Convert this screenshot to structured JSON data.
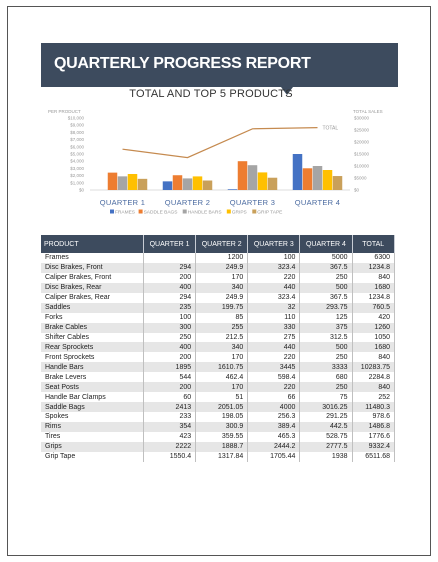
{
  "report": {
    "title": "QUARTERLY PROGRESS REPORT",
    "chart_heading": "TOTAL AND TOP 5 PRODUCTS"
  },
  "chart_data": {
    "type": "bar",
    "title": "TOTAL AND TOP 5 PRODUCTS",
    "categories": [
      "QUARTER 1",
      "QUARTER 2",
      "QUARTER 3",
      "QUARTER 4"
    ],
    "ylabel": "PER PRODUCT",
    "y2label": "TOTAL SALES",
    "ylim": [
      0,
      10000
    ],
    "y2lim": [
      0,
      30000
    ],
    "yticks": [
      "$10,000",
      "$9,000",
      "$8,000",
      "$7,000",
      "$6,000",
      "$5,000",
      "$4,000",
      "$3,000",
      "$2,000",
      "$1,000",
      "$0"
    ],
    "y2ticks": [
      "$30000",
      "$25000",
      "$20000",
      "$15000",
      "$10000",
      "$5000",
      "$0"
    ],
    "legend_position": "bottom",
    "series": [
      {
        "name": "FRAMES",
        "color": "#4472c4",
        "values": [
          0,
          1200,
          100,
          5000
        ]
      },
      {
        "name": "SADDLE BAGS",
        "color": "#ed7d31",
        "values": [
          2413,
          2051.05,
          4000,
          3016.25
        ]
      },
      {
        "name": "HANDLE BARS",
        "color": "#a5a5a5",
        "values": [
          1895,
          1610.75,
          3445,
          3333
        ]
      },
      {
        "name": "GRIPS",
        "color": "#ffc000",
        "values": [
          2222,
          1888.7,
          2444.2,
          2777.5
        ]
      },
      {
        "name": "GRIP TAPE",
        "color": "#c9a05a",
        "values": [
          1550.4,
          1317.84,
          1705.44,
          1938
        ]
      }
    ],
    "line": {
      "name": "TOTAL",
      "color": "#c58a4f",
      "axis": "secondary",
      "values": [
        17000,
        13500,
        25500,
        26000
      ]
    }
  },
  "table": {
    "headers": [
      "PRODUCT",
      "QUARTER 1",
      "QUARTER 2",
      "QUARTER 3",
      "QUARTER 4",
      "TOTAL"
    ],
    "rows": [
      [
        "Frames",
        "",
        "1200",
        "100",
        "5000",
        "6300"
      ],
      [
        "Disc Brakes, Front",
        "294",
        "249.9",
        "323.4",
        "367.5",
        "1234.8"
      ],
      [
        "Caliper Brakes, Front",
        "200",
        "170",
        "220",
        "250",
        "840"
      ],
      [
        "Disc Brakes, Rear",
        "400",
        "340",
        "440",
        "500",
        "1680"
      ],
      [
        "Caliper Brakes, Rear",
        "294",
        "249.9",
        "323.4",
        "367.5",
        "1234.8"
      ],
      [
        "Saddles",
        "235",
        "199.75",
        "32",
        "293.75",
        "760.5"
      ],
      [
        "Forks",
        "100",
        "85",
        "110",
        "125",
        "420"
      ],
      [
        "Brake Cables",
        "300",
        "255",
        "330",
        "375",
        "1260"
      ],
      [
        "Shifter Cables",
        "250",
        "212.5",
        "275",
        "312.5",
        "1050"
      ],
      [
        "Rear Sprockets",
        "400",
        "340",
        "440",
        "500",
        "1680"
      ],
      [
        "Front Sprockets",
        "200",
        "170",
        "220",
        "250",
        "840"
      ],
      [
        "Handle Bars",
        "1895",
        "1610.75",
        "3445",
        "3333",
        "10283.75"
      ],
      [
        "Brake Levers",
        "544",
        "462.4",
        "598.4",
        "680",
        "2284.8"
      ],
      [
        "Seat Posts",
        "200",
        "170",
        "220",
        "250",
        "840"
      ],
      [
        "Handle Bar Clamps",
        "60",
        "51",
        "66",
        "75",
        "252"
      ],
      [
        "Saddle Bags",
        "2413",
        "2051.05",
        "4000",
        "3016.25",
        "11480.3"
      ],
      [
        "Spokes",
        "233",
        "198.05",
        "256.3",
        "291.25",
        "978.6"
      ],
      [
        "Rims",
        "354",
        "300.9",
        "389.4",
        "442.5",
        "1486.8"
      ],
      [
        "Tires",
        "423",
        "359.55",
        "465.3",
        "528.75",
        "1776.6"
      ],
      [
        "Grips",
        "2222",
        "1888.7",
        "2444.2",
        "2777.5",
        "9332.4"
      ],
      [
        "Grip Tape",
        "1550.4",
        "1317.84",
        "1705.44",
        "1938",
        "6511.68"
      ]
    ]
  }
}
